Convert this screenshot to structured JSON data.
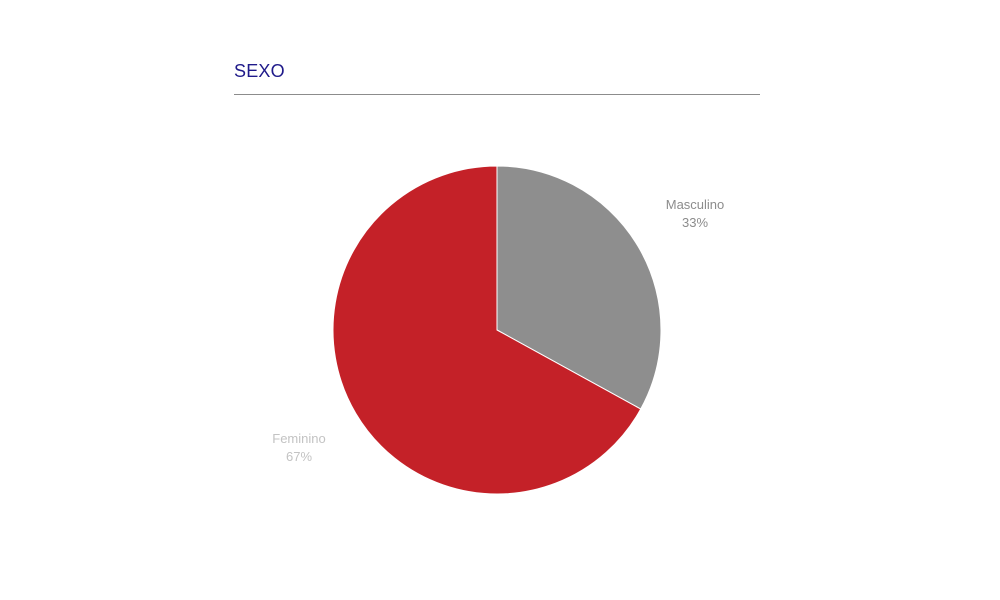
{
  "header": {
    "title": "SEXO"
  },
  "chart_data": {
    "type": "pie",
    "title": "SEXO",
    "slices": [
      {
        "label": "Masculino",
        "percent_text": "33%",
        "value": 33,
        "color": "#8e8e8e",
        "label_color": "#8c8c8c"
      },
      {
        "label": "Feminino",
        "percent_text": "67%",
        "value": 67,
        "color": "#c42128",
        "label_color": "#c3c3c3"
      }
    ],
    "start": "12 o'clock",
    "direction": "clockwise",
    "legend": "none"
  },
  "colors": {
    "title": "#1f1a8a",
    "divider": "#8c8c8c",
    "slice_border": "#ffffff"
  }
}
